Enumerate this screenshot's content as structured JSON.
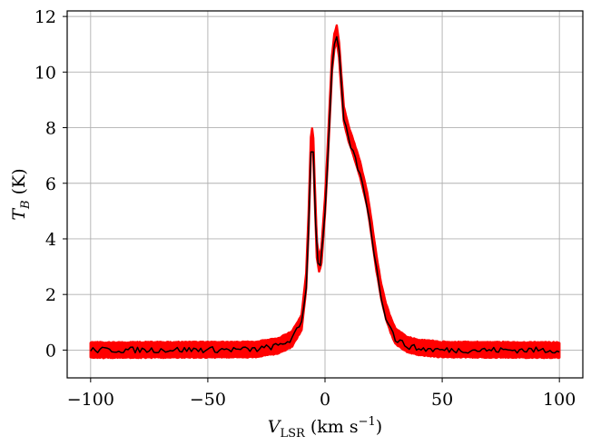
{
  "chart_data": {
    "type": "line",
    "title": "",
    "xlabel": "V_LSR (km s^-1)",
    "ylabel": "T_B (K)",
    "xlim": [
      -110,
      110
    ],
    "ylim": [
      -1.0,
      12.2
    ],
    "xticks": [
      -100,
      -50,
      0,
      50,
      100
    ],
    "xtick_labels": [
      "−100",
      "−50",
      "0",
      "50",
      "100"
    ],
    "yticks": [
      0,
      2,
      4,
      6,
      8,
      10,
      12
    ],
    "ytick_labels": [
      "0",
      "2",
      "4",
      "6",
      "8",
      "10",
      "12"
    ],
    "grid": true,
    "legend": "none",
    "series": [
      {
        "role": "model-draws",
        "color": "#ff0000",
        "band_halfwidth_K": 0.25,
        "x": [
          -100,
          -30,
          -20,
          -14,
          -10,
          -8,
          -7,
          -6,
          -5.2,
          -4.5,
          -3.5,
          -2.5,
          -1.5,
          0,
          1,
          2,
          3,
          4,
          5,
          6,
          7,
          8,
          10,
          12,
          15,
          18,
          20,
          22,
          24,
          26,
          28,
          30,
          35,
          40,
          50,
          100
        ],
        "values": [
          0,
          0.02,
          0.15,
          0.4,
          1.0,
          2.5,
          4.6,
          7.4,
          7.9,
          6.0,
          3.6,
          3.1,
          3.4,
          5.2,
          6.8,
          8.6,
          10.3,
          11.1,
          11.4,
          10.8,
          9.6,
          8.5,
          7.8,
          7.3,
          6.5,
          5.4,
          4.3,
          3.1,
          2.1,
          1.4,
          0.9,
          0.5,
          0.2,
          0.1,
          0.02,
          0
        ]
      },
      {
        "role": "observed-spectrum",
        "color": "#000000",
        "x": [
          -100,
          -30,
          -20,
          -14,
          -10,
          -8,
          -7,
          -6,
          -5.2,
          -4.5,
          -3.5,
          -2.5,
          -1.5,
          0,
          1,
          2,
          3,
          4,
          5,
          6,
          7,
          8,
          10,
          12,
          15,
          18,
          20,
          22,
          24,
          26,
          28,
          30,
          35,
          40,
          50,
          100
        ],
        "values": [
          0,
          0.02,
          0.15,
          0.4,
          1.0,
          2.3,
          4.3,
          7.2,
          7.6,
          5.8,
          3.4,
          2.9,
          3.3,
          5.0,
          6.6,
          8.4,
          10.1,
          10.9,
          11.3,
          10.7,
          9.5,
          8.3,
          7.6,
          7.1,
          6.3,
          5.2,
          4.1,
          2.9,
          1.9,
          1.2,
          0.8,
          0.4,
          0.15,
          0.05,
          0.0,
          0
        ]
      }
    ],
    "noise_colors": [
      "#66ccff",
      "#ffaa33",
      "#cc66ff",
      "#88dd66",
      "#ff66aa",
      "#4499ff"
    ]
  }
}
